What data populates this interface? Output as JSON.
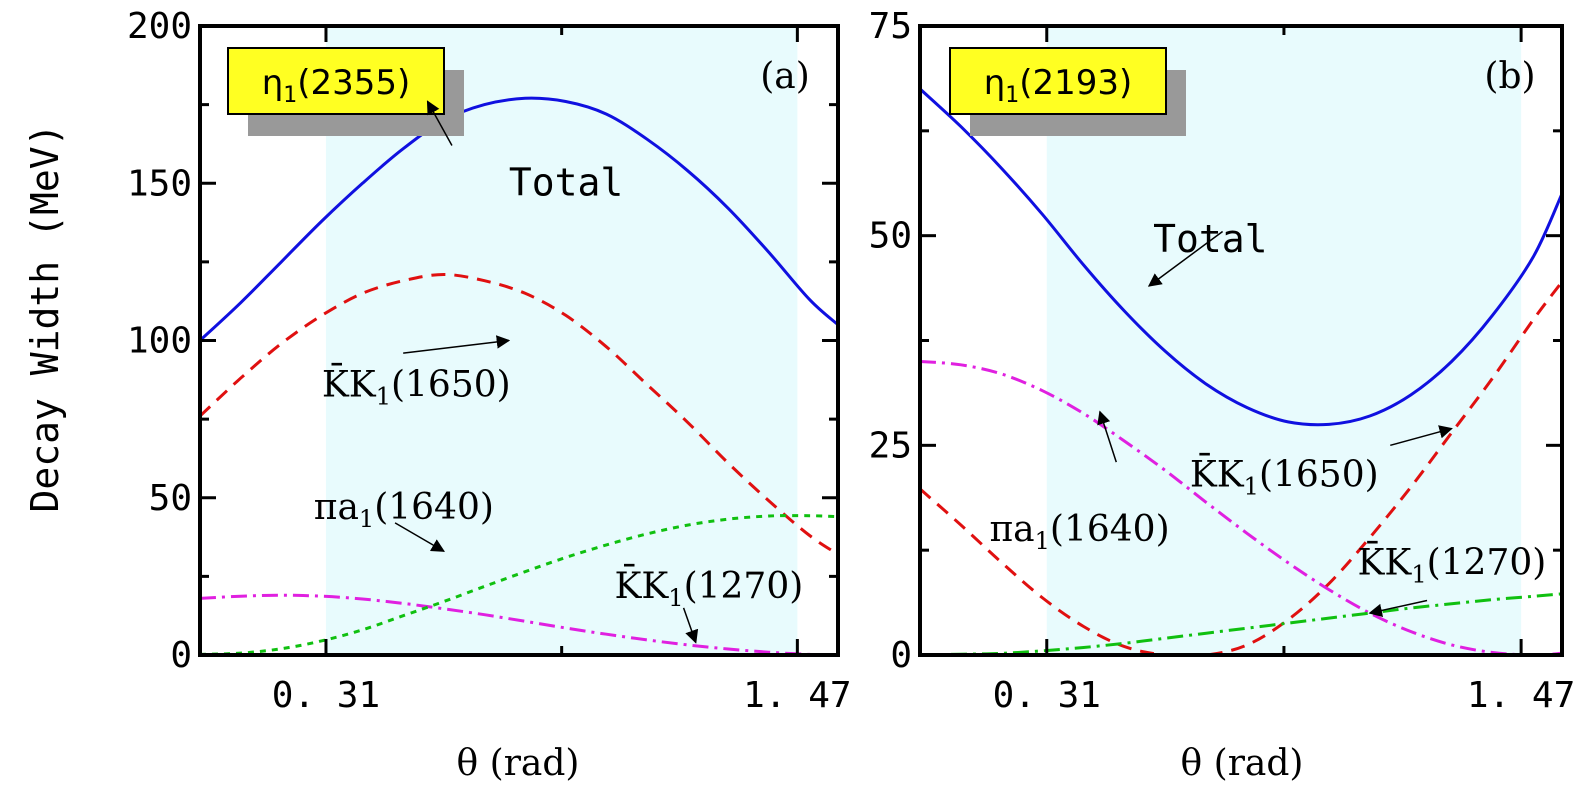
{
  "ylabel": "Decay Width (MeV)",
  "xlabel": "θ (rad)",
  "chart_data": [
    {
      "type": "line",
      "panel": "(a)",
      "badge": {
        "base": "η",
        "sub": "1",
        "rest": "(2355)"
      },
      "xlim": [
        0.0,
        1.57
      ],
      "ylim": [
        0,
        200
      ],
      "yticks": [
        0,
        50,
        100,
        150,
        200
      ],
      "xticks": [
        0.31,
        1.47
      ],
      "xtick_labels": [
        "0. 31",
        "1. 47"
      ],
      "shaded_band": [
        0.31,
        1.47
      ],
      "series": [
        {
          "name": "Total",
          "color": "#1010e0",
          "dash": "solid",
          "x": [
            0.0,
            0.1,
            0.2,
            0.3,
            0.4,
            0.5,
            0.6,
            0.7,
            0.8,
            0.9,
            1.0,
            1.1,
            1.2,
            1.3,
            1.4,
            1.5,
            1.57
          ],
          "y": [
            100,
            112,
            125,
            138,
            150,
            161,
            170,
            175,
            177,
            176,
            172,
            164,
            154,
            142,
            128,
            113,
            105
          ]
        },
        {
          "name": "K̄K₁(1650)",
          "color": "#e01010",
          "dash": "dash",
          "x": [
            0.0,
            0.1,
            0.2,
            0.3,
            0.4,
            0.5,
            0.6,
            0.7,
            0.8,
            0.9,
            1.0,
            1.1,
            1.2,
            1.3,
            1.4,
            1.5,
            1.57
          ],
          "y": [
            76,
            88,
            99,
            108,
            115,
            119,
            121,
            119,
            115,
            108,
            98,
            86,
            74,
            61,
            49,
            38,
            32
          ]
        },
        {
          "name": "πa₁(1640)",
          "color": "#e020e0",
          "dash": "dashdot",
          "x": [
            0.0,
            0.1,
            0.2,
            0.3,
            0.4,
            0.5,
            0.6,
            0.7,
            0.8,
            0.9,
            1.0,
            1.1,
            1.2,
            1.3,
            1.4,
            1.5,
            1.57
          ],
          "y": [
            18,
            18.7,
            19,
            18.7,
            17.8,
            16.4,
            14.7,
            12.8,
            10.7,
            8.6,
            6.6,
            4.8,
            3.2,
            1.9,
            0.9,
            0.2,
            0.1
          ]
        },
        {
          "name": "K̄K₁(1270)",
          "color": "#10c010",
          "dash": "dot",
          "x": [
            0.0,
            0.1,
            0.2,
            0.3,
            0.4,
            0.5,
            0.6,
            0.7,
            0.8,
            0.9,
            1.0,
            1.1,
            1.2,
            1.3,
            1.4,
            1.5,
            1.57
          ],
          "y": [
            0.2,
            0.6,
            2,
            4.5,
            8,
            12.5,
            17,
            21.8,
            26.5,
            31,
            35,
            38.5,
            41.3,
            43.2,
            44.2,
            44.3,
            44
          ]
        }
      ],
      "annotations": [
        {
          "series": "Total",
          "text": "Total",
          "x": 0.78,
          "y": 143
        },
        {
          "series": "K̄K₁(1650)",
          "text": "K̄K₁(1650)",
          "x": 0.32,
          "y": 85
        },
        {
          "series": "πa₁(1640)",
          "text": "πa₁(1640)",
          "x": 0.28,
          "y": 45
        },
        {
          "series": "K̄K₁(1270)",
          "text": "K̄K₁(1270)",
          "x": 1.02,
          "y": 24
        }
      ]
    },
    {
      "type": "line",
      "panel": "(b)",
      "badge": {
        "base": "η",
        "sub": "1",
        "rest": "(2193)"
      },
      "xlim": [
        0.0,
        1.57
      ],
      "ylim": [
        0,
        75
      ],
      "yticks": [
        0,
        25,
        50,
        75
      ],
      "xticks": [
        0.31,
        1.47
      ],
      "xtick_labels": [
        "0. 31",
        "1. 47"
      ],
      "shaded_band": [
        0.31,
        1.47
      ],
      "series": [
        {
          "name": "Total",
          "color": "#1010e0",
          "dash": "solid",
          "x": [
            0.0,
            0.1,
            0.2,
            0.3,
            0.4,
            0.5,
            0.6,
            0.7,
            0.8,
            0.9,
            1.0,
            1.1,
            1.2,
            1.3,
            1.4,
            1.5,
            1.57
          ],
          "y": [
            67.5,
            63,
            58,
            52.5,
            46.5,
            41,
            36.2,
            32.3,
            29.5,
            27.8,
            27.5,
            28.5,
            31,
            35,
            40.5,
            47.5,
            55
          ]
        },
        {
          "name": "K̄K₁(1650)",
          "color": "#e01010",
          "dash": "dash",
          "x": [
            0.0,
            0.1,
            0.2,
            0.3,
            0.4,
            0.5,
            0.6,
            0.7,
            0.8,
            0.9,
            1.0,
            1.1,
            1.2,
            1.3,
            1.4,
            1.5,
            1.57
          ],
          "y": [
            19.8,
            15.5,
            11,
            6.8,
            3.4,
            1,
            0,
            0,
            1.2,
            4.2,
            8.5,
            14,
            20,
            26.5,
            33,
            40,
            44.5
          ]
        },
        {
          "name": "πa₁(1640)",
          "color": "#e020e0",
          "dash": "dashdot",
          "x": [
            0.0,
            0.1,
            0.2,
            0.3,
            0.4,
            0.5,
            0.6,
            0.7,
            0.8,
            0.9,
            1.0,
            1.1,
            1.2,
            1.3,
            1.4,
            1.5,
            1.57
          ],
          "y": [
            35,
            34.6,
            33.5,
            31.5,
            28.8,
            25.5,
            22,
            18.2,
            14.5,
            11,
            7.8,
            5,
            2.8,
            1.2,
            0.3,
            0,
            0.2
          ]
        },
        {
          "name": "K̄K₁(1270)",
          "color": "#10c010",
          "dash": "dashdot",
          "x": [
            0.0,
            0.1,
            0.2,
            0.3,
            0.4,
            0.5,
            0.6,
            0.7,
            0.8,
            0.9,
            1.0,
            1.1,
            1.2,
            1.3,
            1.4,
            1.5,
            1.57
          ],
          "y": [
            0,
            0.1,
            0.2,
            0.5,
            0.9,
            1.4,
            2,
            2.6,
            3.2,
            3.8,
            4.4,
            5,
            5.6,
            6.1,
            6.6,
            7,
            7.3
          ]
        }
      ],
      "annotations": [
        {
          "series": "Total",
          "text": "Total",
          "x": 0.57,
          "y": 49
        },
        {
          "series": "K̄K₁(1650)",
          "text": "K̄K₁(1650)",
          "x": 0.66,
          "y": 21
        },
        {
          "series": "πa₁(1640)",
          "text": "πa₁(1640)",
          "x": 0.17,
          "y": 15
        },
        {
          "series": "K̄K₁(1270)",
          "text": "K̄K₁(1270)",
          "x": 1.07,
          "y": 11
        }
      ]
    }
  ]
}
